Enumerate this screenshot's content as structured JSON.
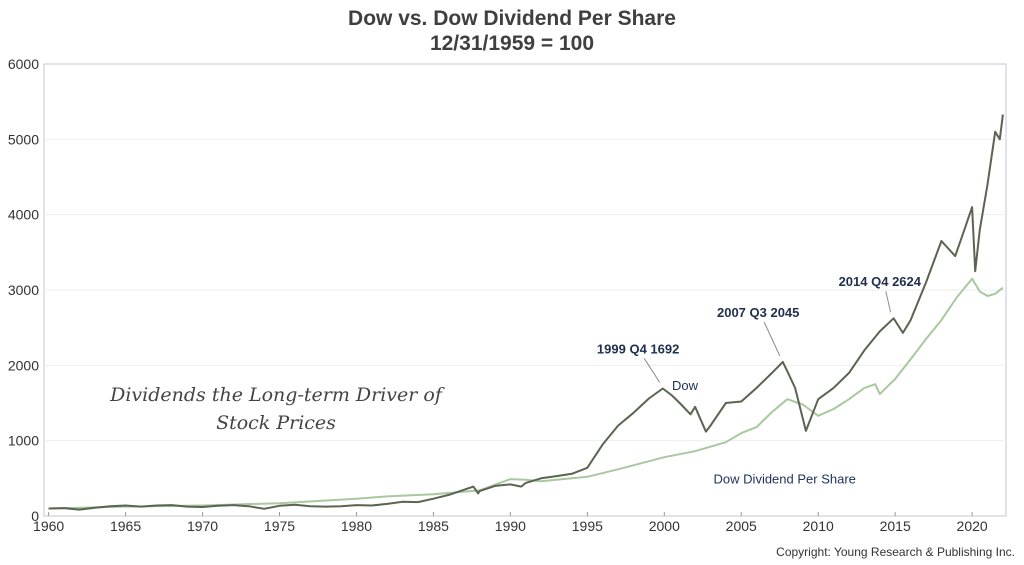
{
  "chart_data": {
    "type": "line",
    "title": "Dow vs. Dow Dividend Per Share",
    "subtitle": "12/31/1959 = 100",
    "xlim": [
      1959.7,
      2022.2
    ],
    "ylim": [
      0,
      6000
    ],
    "y_ticks": [
      0,
      1000,
      2000,
      3000,
      4000,
      5000,
      6000
    ],
    "x_ticks": [
      1960,
      1965,
      1970,
      1975,
      1980,
      1985,
      1990,
      1995,
      2000,
      2005,
      2010,
      2015,
      2020
    ],
    "grid": true,
    "series": [
      {
        "name": "Dow",
        "color": "#5a6450",
        "points": [
          [
            1960,
            100
          ],
          [
            1961,
            105
          ],
          [
            1962,
            85
          ],
          [
            1963,
            110
          ],
          [
            1964,
            130
          ],
          [
            1965,
            140
          ],
          [
            1966,
            125
          ],
          [
            1967,
            140
          ],
          [
            1968,
            145
          ],
          [
            1969,
            125
          ],
          [
            1970,
            120
          ],
          [
            1971,
            135
          ],
          [
            1972,
            145
          ],
          [
            1973,
            130
          ],
          [
            1974,
            95
          ],
          [
            1975,
            135
          ],
          [
            1976,
            150
          ],
          [
            1977,
            130
          ],
          [
            1978,
            125
          ],
          [
            1979,
            130
          ],
          [
            1980,
            145
          ],
          [
            1981,
            140
          ],
          [
            1982,
            160
          ],
          [
            1983,
            190
          ],
          [
            1984,
            185
          ],
          [
            1985,
            230
          ],
          [
            1986,
            280
          ],
          [
            1987.6,
            390
          ],
          [
            1987.9,
            300
          ],
          [
            1988,
            330
          ],
          [
            1989,
            400
          ],
          [
            1990,
            420
          ],
          [
            1990.7,
            390
          ],
          [
            1991,
            440
          ],
          [
            1992,
            500
          ],
          [
            1993,
            530
          ],
          [
            1994,
            560
          ],
          [
            1995,
            640
          ],
          [
            1996,
            950
          ],
          [
            1997,
            1200
          ],
          [
            1998,
            1370
          ],
          [
            1999,
            1560
          ],
          [
            1999.9,
            1692
          ],
          [
            2000.5,
            1600
          ],
          [
            2001,
            1500
          ],
          [
            2001.7,
            1350
          ],
          [
            2002,
            1450
          ],
          [
            2002.7,
            1120
          ],
          [
            2003,
            1200
          ],
          [
            2004,
            1500
          ],
          [
            2005,
            1520
          ],
          [
            2006,
            1700
          ],
          [
            2007,
            1900
          ],
          [
            2007.7,
            2045
          ],
          [
            2008,
            1920
          ],
          [
            2008.5,
            1700
          ],
          [
            2009.2,
            1130
          ],
          [
            2010,
            1550
          ],
          [
            2011,
            1700
          ],
          [
            2012,
            1900
          ],
          [
            2013,
            2200
          ],
          [
            2014,
            2450
          ],
          [
            2014.9,
            2624
          ],
          [
            2015.5,
            2430
          ],
          [
            2016,
            2600
          ],
          [
            2017,
            3100
          ],
          [
            2018,
            3650
          ],
          [
            2018.9,
            3450
          ],
          [
            2019.5,
            3800
          ],
          [
            2020,
            4100
          ],
          [
            2020.2,
            3250
          ],
          [
            2020.5,
            3800
          ],
          [
            2021,
            4400
          ],
          [
            2021.5,
            5100
          ],
          [
            2021.8,
            5000
          ],
          [
            2022,
            5330
          ]
        ]
      },
      {
        "name": "Dow Dividend Per Share",
        "color": "#a9c8a0",
        "points": [
          [
            1960,
            100
          ],
          [
            1965,
            125
          ],
          [
            1970,
            140
          ],
          [
            1975,
            170
          ],
          [
            1980,
            230
          ],
          [
            1982,
            260
          ],
          [
            1985,
            290
          ],
          [
            1988,
            340
          ],
          [
            1990,
            490
          ],
          [
            1991,
            480
          ],
          [
            1992,
            460
          ],
          [
            1995,
            520
          ],
          [
            1997,
            620
          ],
          [
            2000,
            780
          ],
          [
            2002,
            860
          ],
          [
            2004,
            980
          ],
          [
            2005,
            1100
          ],
          [
            2006,
            1180
          ],
          [
            2007,
            1380
          ],
          [
            2008,
            1550
          ],
          [
            2009,
            1480
          ],
          [
            2010,
            1330
          ],
          [
            2011,
            1420
          ],
          [
            2012,
            1550
          ],
          [
            2013,
            1700
          ],
          [
            2013.7,
            1750
          ],
          [
            2014,
            1620
          ],
          [
            2015,
            1820
          ],
          [
            2016,
            2080
          ],
          [
            2017,
            2350
          ],
          [
            2018,
            2600
          ],
          [
            2019,
            2900
          ],
          [
            2020,
            3150
          ],
          [
            2020.5,
            2980
          ],
          [
            2021,
            2920
          ],
          [
            2021.5,
            2950
          ],
          [
            2022,
            3030
          ]
        ]
      }
    ],
    "annotations": [
      {
        "text": "1999 Q4 1692",
        "x": 1999.9,
        "y": 1692,
        "label_x": 1998.3,
        "label_y": 2160
      },
      {
        "text": "2007 Q3 2045",
        "x": 2007.7,
        "y": 2045,
        "label_x": 2006.1,
        "label_y": 2640
      },
      {
        "text": "2014 Q4 2624",
        "x": 2014.9,
        "y": 2624,
        "label_x": 2014.0,
        "label_y": 3050
      }
    ],
    "series_labels": [
      {
        "text": "Dow",
        "x": 2000.5,
        "y": 1670
      },
      {
        "text": "Dow Dividend Per Share",
        "x": 2003.2,
        "y": 430
      }
    ],
    "note": "Dividends the Long-term Driver of Stock Prices"
  },
  "copyright": "Copyright: Young Research & Publishing Inc."
}
